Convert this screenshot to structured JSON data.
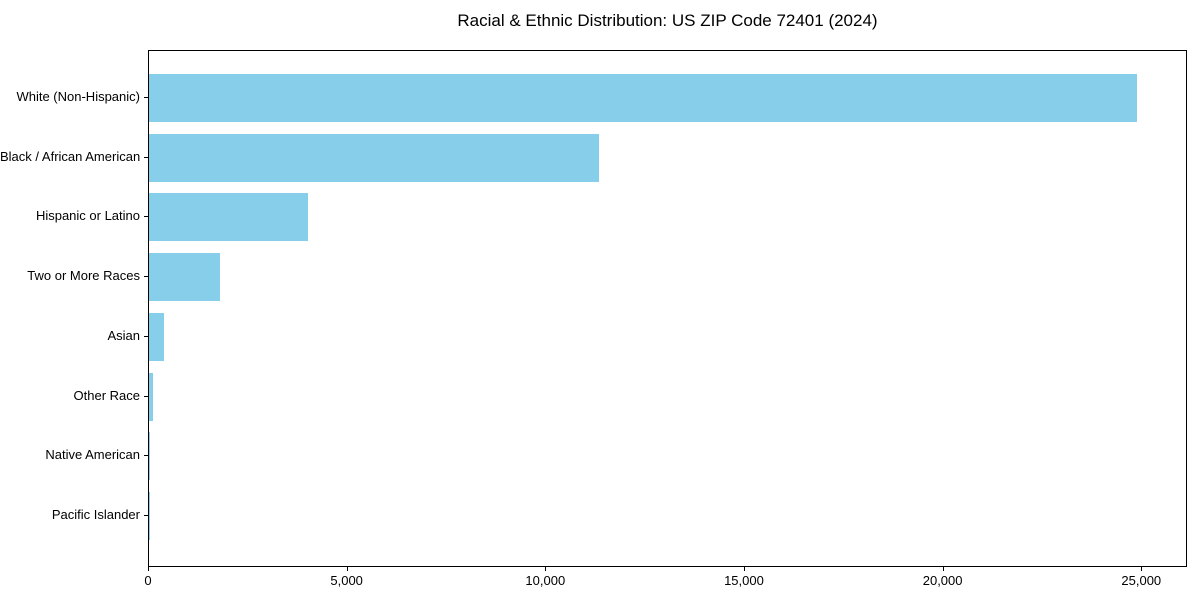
{
  "chart_data": {
    "type": "bar",
    "orientation": "horizontal",
    "title": "Racial & Ethnic Distribution: US ZIP Code 72401 (2024)",
    "categories": [
      "White (Non-Hispanic)",
      "Black / African American",
      "Hispanic or Latino",
      "Two or More Races",
      "Asian",
      "Other Race",
      "Native American",
      "Pacific Islander"
    ],
    "values": [
      24860,
      11320,
      3990,
      1780,
      370,
      100,
      30,
      10
    ],
    "xlabel": "",
    "ylabel": "",
    "xlim": [
      0,
      26100
    ],
    "x_ticks": [
      0,
      5000,
      10000,
      15000,
      20000,
      25000
    ],
    "x_tick_labels": [
      "0",
      "5,000",
      "10,000",
      "15,000",
      "20,000",
      "25,000"
    ],
    "bar_color": "#87CEEB",
    "spine_color": "#000000",
    "background_color": "#FFFFFF",
    "grid": false,
    "legend": "none"
  }
}
